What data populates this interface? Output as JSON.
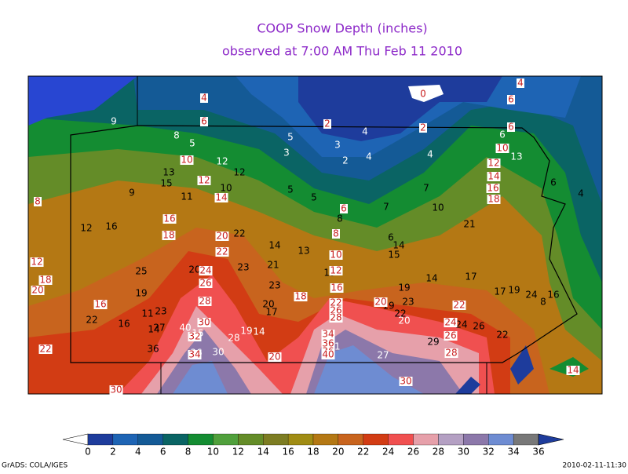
{
  "header": {
    "title": "COOP Snow Depth (inches)",
    "subtitle": "observed at 7:00 AM Thu Feb 11 2010"
  },
  "stations": {
    "plain": [
      9,
      8,
      5,
      5,
      3,
      3,
      4,
      2,
      4,
      4,
      6,
      13,
      6,
      4,
      13,
      15,
      9,
      11,
      12,
      12,
      10,
      5,
      5,
      8,
      7,
      7,
      10,
      21,
      12,
      16,
      22,
      14,
      13,
      6,
      14,
      15,
      19,
      19,
      14,
      17,
      25,
      19,
      20,
      23,
      21,
      23,
      17,
      19,
      24,
      16,
      8,
      19,
      23,
      22,
      20,
      22,
      16,
      11,
      23,
      14,
      27,
      40,
      15,
      36,
      20,
      17,
      19,
      14,
      28,
      36,
      30,
      41,
      27,
      24,
      26,
      29,
      22
    ],
    "boxed": [
      4,
      6,
      2,
      0,
      4,
      6,
      2,
      6,
      10,
      12,
      14,
      16,
      18,
      10,
      12,
      14,
      6,
      8,
      10,
      12,
      16,
      16,
      18,
      20,
      22,
      8,
      12,
      18,
      20,
      16,
      24,
      26,
      28,
      22,
      26,
      28,
      20,
      22,
      24,
      26,
      28,
      30,
      32,
      34,
      34,
      36,
      36,
      40,
      18,
      20,
      30,
      30,
      22,
      14
    ]
  },
  "colorbar": {
    "ticks": [
      0,
      2,
      4,
      6,
      8,
      10,
      12,
      14,
      16,
      18,
      20,
      22,
      24,
      26,
      28,
      30,
      32,
      34,
      36
    ],
    "colors": [
      "#1e3c9c",
      "#1e64b4",
      "#145a96",
      "#0a6464",
      "#148c32",
      "#50a03c",
      "#648c28",
      "#7d7d23",
      "#a08c14",
      "#b47814",
      "#c8641e",
      "#d23c14",
      "#f05050",
      "#e6a0aa",
      "#b4a0c3",
      "#8c78aa",
      "#6e8cd2",
      "#787878"
    ],
    "under_color": "#ffffff",
    "over_color": "#1e3c9c"
  },
  "footer": {
    "left": "GrADS: COLA/IGES",
    "right": "2010-02-11-11:30"
  }
}
